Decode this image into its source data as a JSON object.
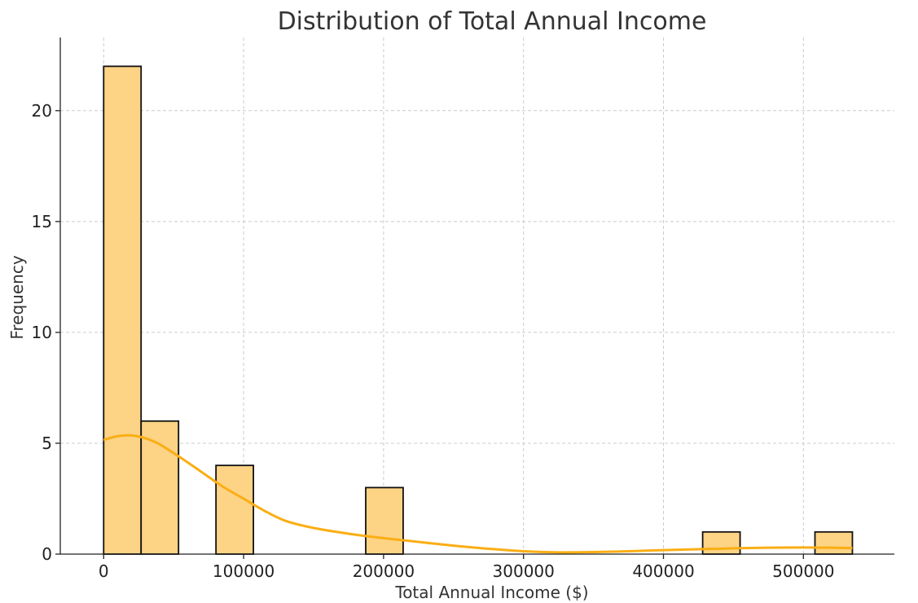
{
  "chart_data": {
    "type": "bar",
    "subtype": "histogram-with-kde",
    "title": "Distribution of Total Annual Income",
    "xlabel": "Total Annual Income ($)",
    "ylabel": "Frequency",
    "xlim": [
      -31000,
      565000
    ],
    "ylim": [
      0,
      23.3
    ],
    "xticks": [
      0,
      100000,
      200000,
      300000,
      400000,
      500000
    ],
    "yticks": [
      0,
      5,
      10,
      15,
      20
    ],
    "grid": true,
    "colors": {
      "bar_fill": "#FDD385",
      "bar_edge": "#111111",
      "kde": "#FAAE14",
      "grid": "#CCCCCC"
    },
    "bins": [
      {
        "x0": 0,
        "x1": 26750,
        "count": 22
      },
      {
        "x0": 26750,
        "x1": 53500,
        "count": 6
      },
      {
        "x0": 80250,
        "x1": 107000,
        "count": 4
      },
      {
        "x0": 187250,
        "x1": 214000,
        "count": 3
      },
      {
        "x0": 428000,
        "x1": 454750,
        "count": 1
      },
      {
        "x0": 508250,
        "x1": 535000,
        "count": 1
      }
    ],
    "kde": {
      "x": [
        0,
        10000,
        20000,
        30000,
        40000,
        55000,
        70000,
        85000,
        100000,
        115000,
        130000,
        150000,
        175000,
        200000,
        225000,
        250000,
        275000,
        300000,
        325000,
        350000,
        375000,
        400000,
        425000,
        450000,
        475000,
        500000,
        520000,
        535000
      ],
      "y": [
        5.15,
        5.32,
        5.35,
        5.22,
        4.95,
        4.35,
        3.7,
        3.05,
        2.5,
        1.95,
        1.5,
        1.18,
        0.92,
        0.72,
        0.55,
        0.38,
        0.24,
        0.13,
        0.08,
        0.09,
        0.13,
        0.18,
        0.22,
        0.26,
        0.29,
        0.3,
        0.29,
        0.27
      ]
    }
  }
}
